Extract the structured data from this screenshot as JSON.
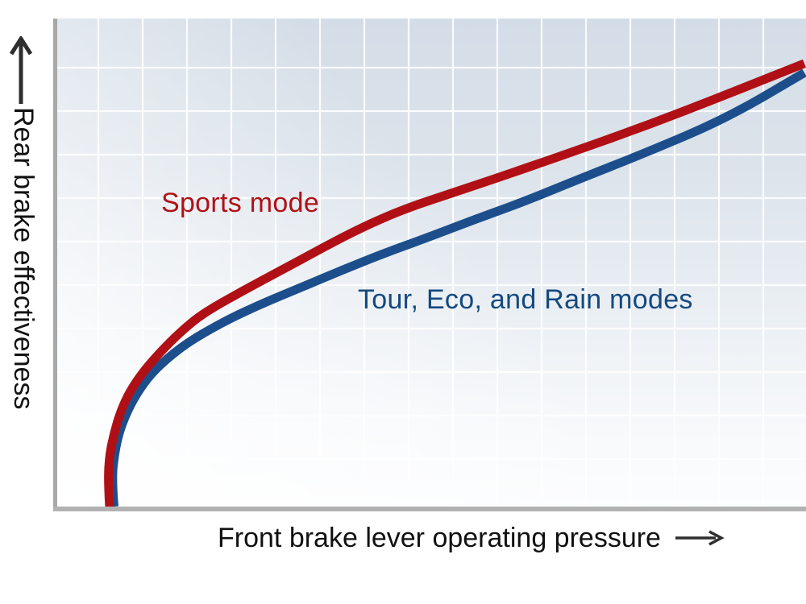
{
  "chart_data": {
    "type": "line",
    "title": "",
    "xlabel": "Front brake lever operating pressure",
    "ylabel": "Rear brake effectiveness",
    "xlim": [
      0,
      100
    ],
    "ylim": [
      0,
      100
    ],
    "x_ticks": [],
    "y_ticks": [],
    "grid": true,
    "axis_arrows": true,
    "legend_position": "inline curve labels",
    "series": [
      {
        "name": "Sports mode",
        "color": "#b01015",
        "points": [
          [
            7.0,
            0.0
          ],
          [
            6.8,
            5.6
          ],
          [
            7.0,
            10.6
          ],
          [
            7.6,
            15.0
          ],
          [
            8.5,
            19.6
          ],
          [
            9.8,
            23.8
          ],
          [
            11.5,
            27.6
          ],
          [
            13.7,
            31.5
          ],
          [
            16.3,
            35.5
          ],
          [
            19.3,
            39.4
          ],
          [
            24.7,
            44.1
          ],
          [
            30.1,
            48.5
          ],
          [
            35.5,
            53.0
          ],
          [
            40.9,
            57.3
          ],
          [
            46.3,
            60.9
          ],
          [
            52.8,
            64.2
          ],
          [
            59.2,
            67.5
          ],
          [
            67.9,
            72.1
          ],
          [
            78.6,
            77.9
          ],
          [
            89.4,
            84.3
          ],
          [
            100.0,
            90.8
          ]
        ]
      },
      {
        "name": "Tour, Eco, and Rain modes",
        "color": "#1d4e8c",
        "points": [
          [
            7.6,
            0.0
          ],
          [
            7.3,
            5.6
          ],
          [
            7.7,
            11.1
          ],
          [
            8.3,
            15.3
          ],
          [
            9.3,
            19.3
          ],
          [
            10.7,
            23.3
          ],
          [
            12.4,
            26.9
          ],
          [
            14.6,
            30.2
          ],
          [
            17.2,
            33.3
          ],
          [
            20.2,
            36.1
          ],
          [
            23.6,
            38.9
          ],
          [
            27.9,
            41.9
          ],
          [
            32.8,
            45.0
          ],
          [
            38.2,
            48.5
          ],
          [
            43.6,
            51.8
          ],
          [
            49.5,
            55.1
          ],
          [
            56.0,
            58.9
          ],
          [
            62.5,
            62.5
          ],
          [
            70.0,
            67.2
          ],
          [
            78.6,
            72.4
          ],
          [
            89.4,
            79.4
          ],
          [
            100.0,
            88.9
          ]
        ]
      }
    ]
  },
  "labels": {
    "sports_mode": "Sports mode",
    "tour_modes": "Tour, Eco, and Rain modes",
    "x_axis": "Front brake lever operating pressure",
    "y_axis": "Rear brake effectiveness"
  },
  "icons": {
    "x_axis_arrow": "arrow-right",
    "y_axis_arrow": "arrow-up"
  },
  "colors": {
    "sports_line": "#b01015",
    "sports_text": "#b11116",
    "tour_line": "#1d4e8c",
    "tour_text": "#15497f",
    "axis_gray": "#a8a8a8",
    "grid_white": "#ffffff",
    "arrow_black": "#2e2e2e",
    "text_black": "#111111",
    "bg_top": "#d4dde7",
    "bg_bottom": "#fcfdfe"
  }
}
